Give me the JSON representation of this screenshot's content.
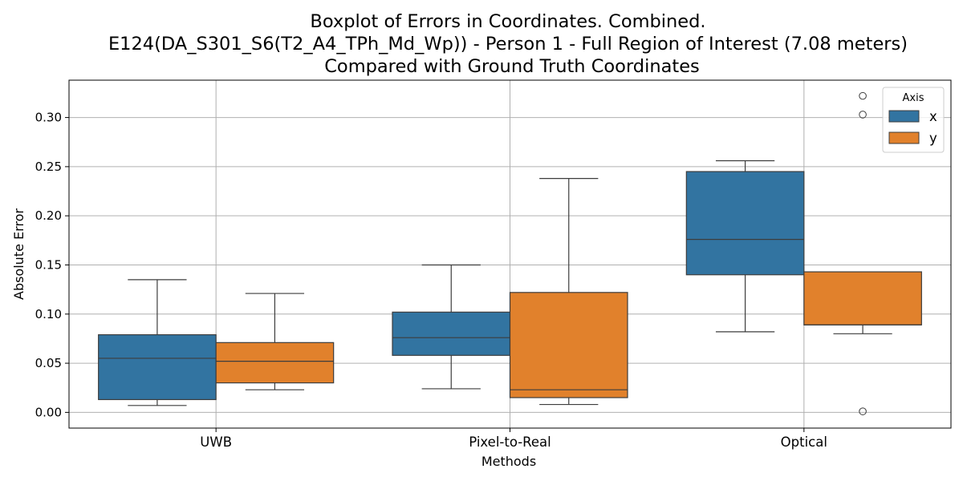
{
  "chart_data": {
    "type": "box",
    "title_lines": [
      "Boxplot of Errors in Coordinates. Combined.",
      "E124(DA_S301_S6(T2_A4_TPh_Md_Wp)) - Person 1 - Full Region of Interest (7.08 meters)",
      "Compared with Ground Truth Coordinates"
    ],
    "xlabel": "Methods",
    "ylabel": "Absolute Error",
    "categories": [
      "UWB",
      "Pixel-to-Real",
      "Optical"
    ],
    "ylim": [
      -0.016,
      0.338
    ],
    "yticks": [
      0.0,
      0.05,
      0.1,
      0.15,
      0.2,
      0.25,
      0.3
    ],
    "ytick_labels": [
      "0.00",
      "0.05",
      "0.10",
      "0.15",
      "0.20",
      "0.25",
      "0.30"
    ],
    "grid": true,
    "legend": {
      "title": "Axis",
      "position": "top-right"
    },
    "series": [
      {
        "name": "x",
        "color": "#3274a1",
        "boxes": [
          {
            "whisker_low": 0.007,
            "q1": 0.013,
            "median": 0.055,
            "q3": 0.079,
            "whisker_high": 0.135,
            "outliers": []
          },
          {
            "whisker_low": 0.024,
            "q1": 0.058,
            "median": 0.076,
            "q3": 0.102,
            "whisker_high": 0.15,
            "outliers": []
          },
          {
            "whisker_low": 0.082,
            "q1": 0.14,
            "median": 0.176,
            "q3": 0.245,
            "whisker_high": 0.256,
            "outliers": []
          }
        ]
      },
      {
        "name": "y",
        "color": "#e1812c",
        "boxes": [
          {
            "whisker_low": 0.023,
            "q1": 0.03,
            "median": 0.052,
            "q3": 0.071,
            "whisker_high": 0.121,
            "outliers": []
          },
          {
            "whisker_low": 0.008,
            "q1": 0.015,
            "median": 0.023,
            "q3": 0.122,
            "whisker_high": 0.238,
            "outliers": []
          },
          {
            "whisker_low": 0.08,
            "q1": 0.089,
            "median": 0.089,
            "q3": 0.143,
            "whisker_high": 0.143,
            "outliers": [
              0.322,
              0.303,
              0.001
            ]
          }
        ]
      }
    ]
  }
}
